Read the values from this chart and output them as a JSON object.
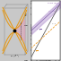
{
  "fig_width": 0.68,
  "fig_height": 0.68,
  "dpi": 100,
  "left_bg": "#c8c8c8",
  "right_bg": "#ffffff",
  "band_color": "#e8960a",
  "pink_color": "#e0a0b8",
  "gray_line": "#888888",
  "purple_color": "#b090cc",
  "purple_line": "#8060aa",
  "orange_color": "#e89010",
  "title_color": "#9060b0",
  "grid_color": "#dddddd"
}
